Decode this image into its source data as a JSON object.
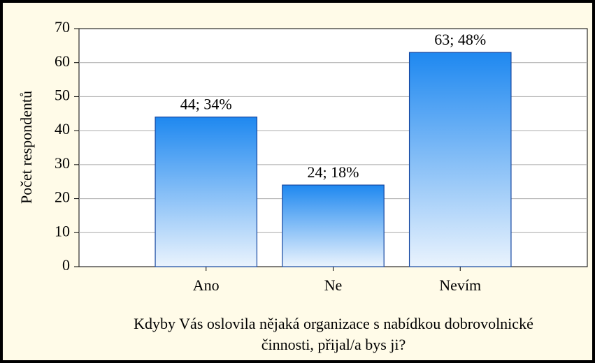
{
  "chart_data": {
    "type": "bar",
    "ylabel": "Počet respondentů",
    "xlabel": [
      "Kdyby Vás oslovila nějaká organizace s nabídkou dobrovolnické",
      "činnosti, přijal/a bys ji?"
    ],
    "categories": [
      "Ano",
      "Ne",
      "Nevím"
    ],
    "values": [
      44,
      24,
      63
    ],
    "value_labels": [
      "44; 34%",
      "24; 18%",
      "63; 48%"
    ],
    "color": "#1e88f0",
    "ylim": [
      0,
      70
    ],
    "yticks": [
      0,
      10,
      20,
      30,
      40,
      50,
      60,
      70
    ],
    "grid": true
  }
}
